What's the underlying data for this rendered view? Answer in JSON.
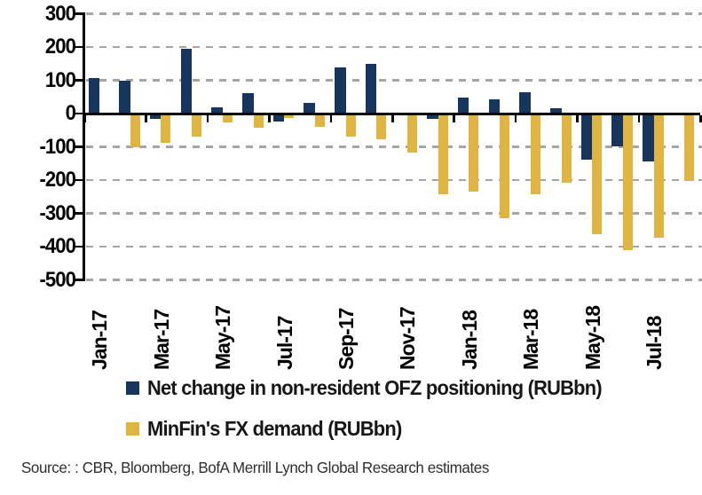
{
  "chart_data": {
    "type": "bar",
    "title": "",
    "categories": [
      "Jan-17",
      "Feb-17",
      "Mar-17",
      "Apr-17",
      "May-17",
      "Jun-17",
      "Jul-17",
      "Aug-17",
      "Sep-17",
      "Oct-17",
      "Nov-17",
      "Dec-17",
      "Jan-18",
      "Feb-18",
      "Mar-18",
      "Apr-18",
      "May-18",
      "Jun-18",
      "Jul-18",
      "Aug-18"
    ],
    "series": [
      {
        "name": "Net change in non-resident OFZ positioning (RUBbn)",
        "color": "#17365d",
        "values": [
          107,
          100,
          -13,
          195,
          20,
          62,
          -20,
          32,
          140,
          150,
          0,
          -13,
          48,
          42,
          65,
          15,
          -135,
          -95,
          -140,
          0
        ]
      },
      {
        "name": "MinFin's FX demand (RUBbn)",
        "color": "#dfb440",
        "values": [
          0,
          -97,
          -85,
          -65,
          -22,
          -40,
          -10,
          -35,
          -65,
          -73,
          -113,
          -238,
          -230,
          -312,
          -240,
          -203,
          -358,
          -408,
          -370,
          -200
        ]
      }
    ],
    "ylim": [
      -500,
      300
    ],
    "yticks": [
      300,
      200,
      100,
      0,
      -100,
      -200,
      -300,
      -400,
      -500
    ],
    "x_axis_labels": [
      "Jan-17",
      "Mar-17",
      "May-17",
      "Jul-17",
      "Sep-17",
      "Nov-17",
      "Jan-18",
      "Mar-18",
      "May-18",
      "Jul-18"
    ],
    "grid": "horizontal-dashed",
    "legend_position": "bottom-left"
  },
  "legend": {
    "item1": "Net change in non-resident OFZ positioning (RUBbn)",
    "item2": "MinFin's FX demand (RUBbn)"
  },
  "source_text": "Source: : CBR, Bloomberg, BofA Merrill Lynch Global Research estimates",
  "colors": {
    "navy": "#17365d",
    "gold": "#dfb440",
    "gridline": "#a5a5a5",
    "axis": "#000000",
    "background": "#ffffff"
  }
}
